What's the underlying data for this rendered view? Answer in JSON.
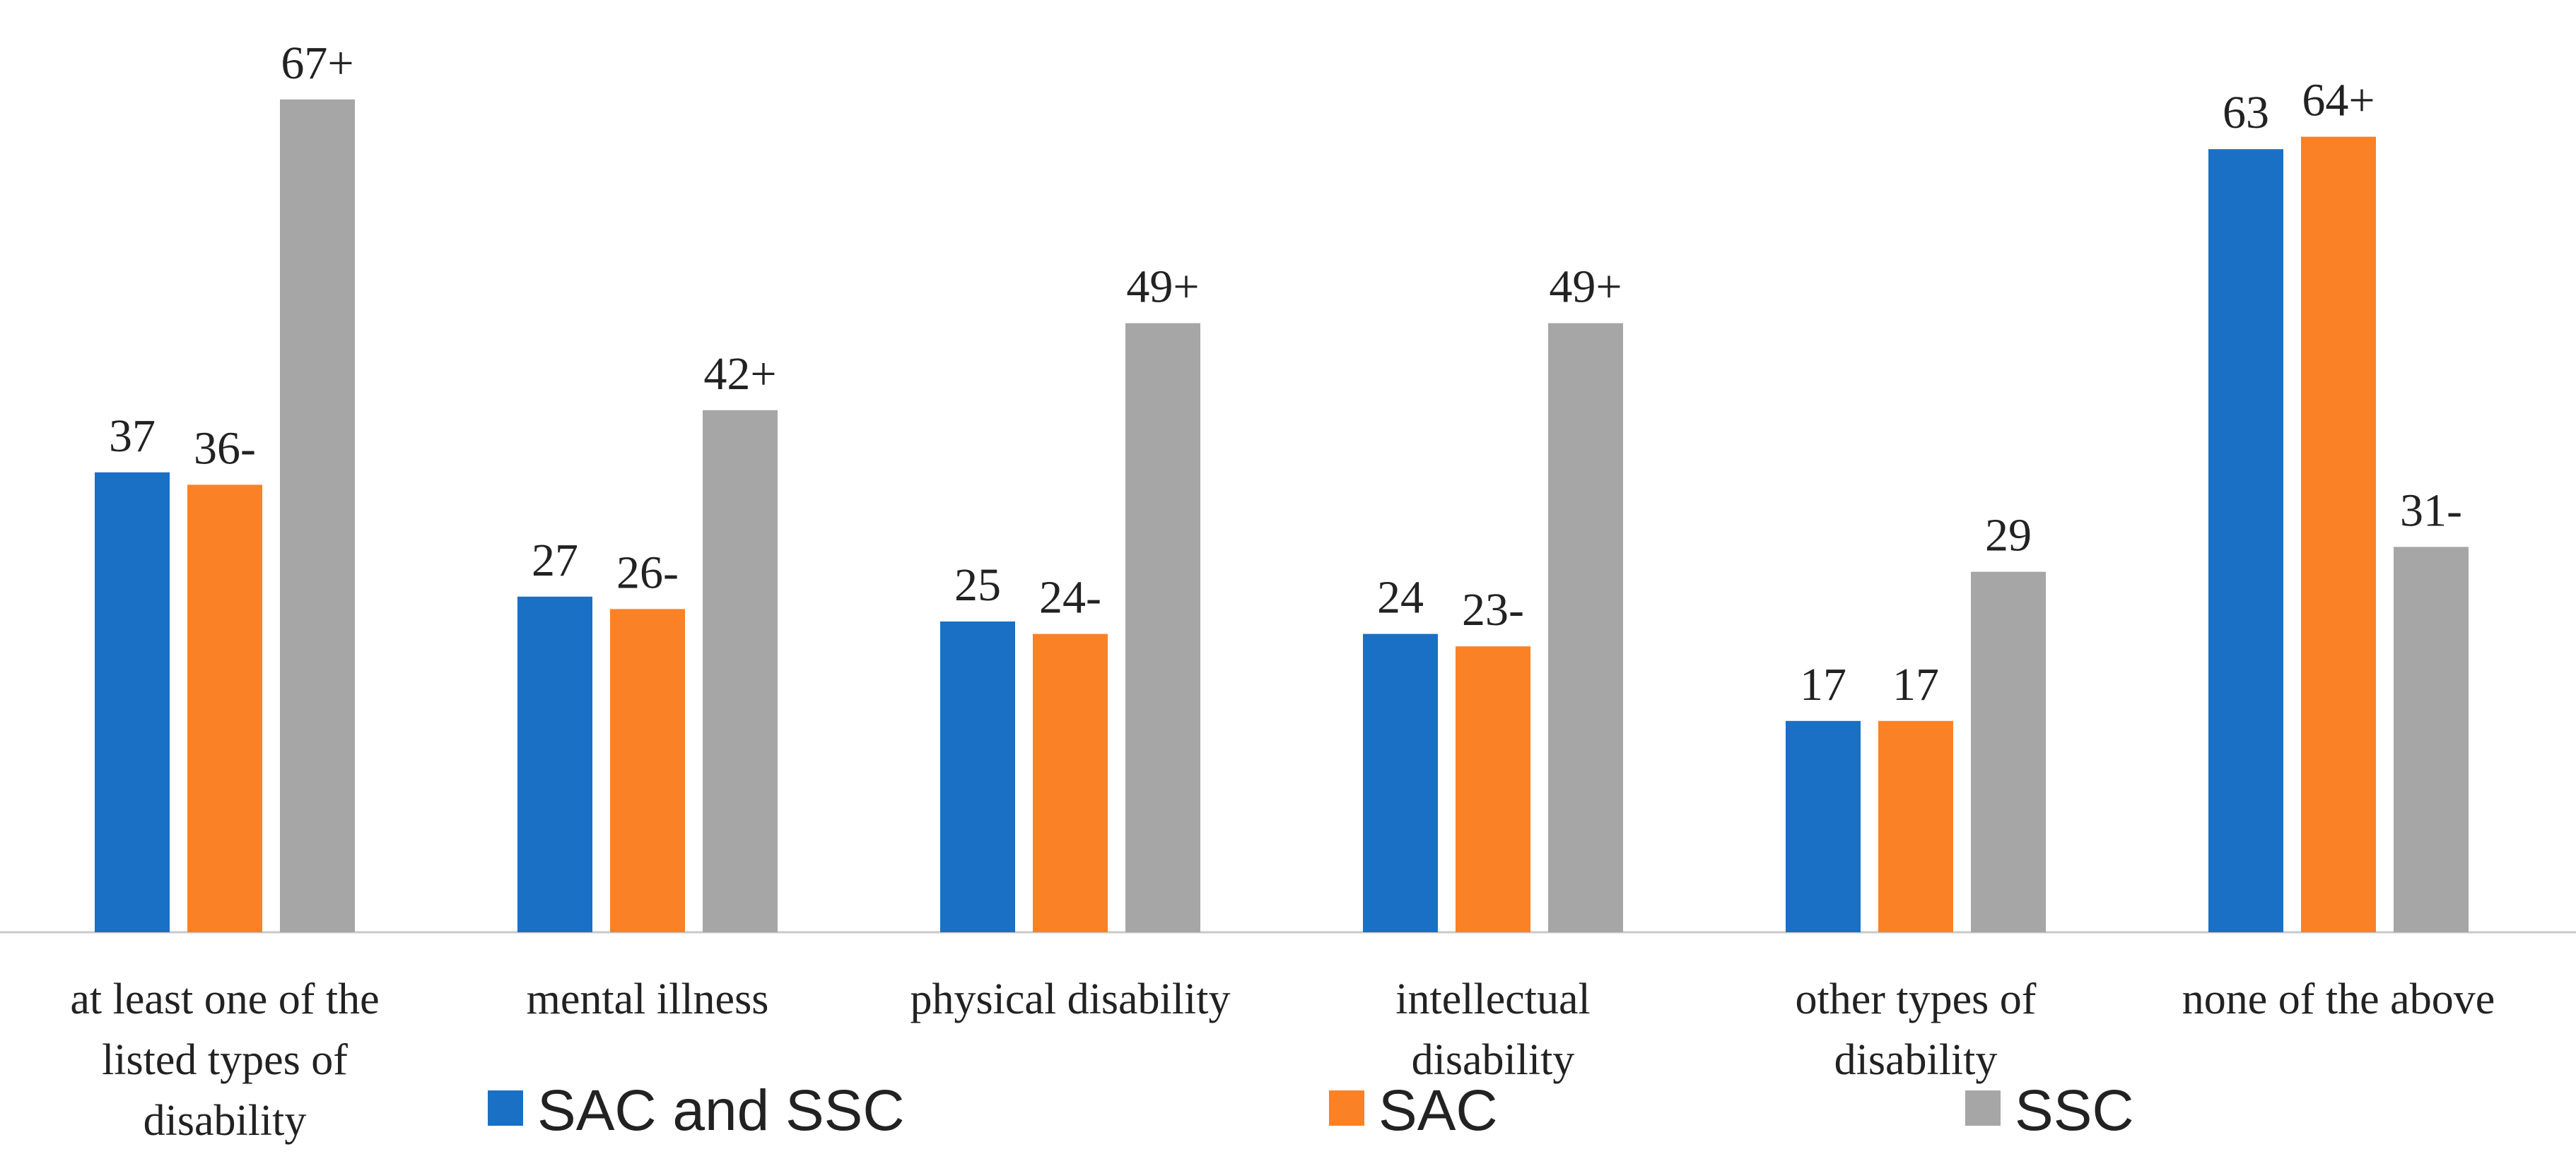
{
  "chart_data": {
    "type": "bar",
    "categories": [
      [
        "at least one of the",
        "listed types of",
        "disability"
      ],
      [
        "mental illness"
      ],
      [
        "physical disability"
      ],
      [
        "intellectual",
        "disability"
      ],
      [
        "other types of",
        "disability"
      ],
      [
        "none of the above"
      ]
    ],
    "series": [
      {
        "name": "SAC and SSC",
        "color": "#1a70c5",
        "values": [
          37,
          27,
          25,
          24,
          17,
          63
        ],
        "labels": [
          "37",
          "27",
          "25",
          "24",
          "17",
          "63"
        ]
      },
      {
        "name": "SAC",
        "color": "#fb8126",
        "values": [
          36,
          26,
          24,
          23,
          17,
          64
        ],
        "labels": [
          "36-",
          "26-",
          "24-",
          "23-",
          "17",
          "64+"
        ]
      },
      {
        "name": "SSC",
        "color": "#a6a6a6",
        "values": [
          67,
          42,
          49,
          49,
          29,
          31
        ],
        "labels": [
          "67+",
          "42+",
          "49+",
          "49+",
          "29",
          "31-"
        ]
      }
    ],
    "legend_position": "bottom",
    "grid": false
  }
}
